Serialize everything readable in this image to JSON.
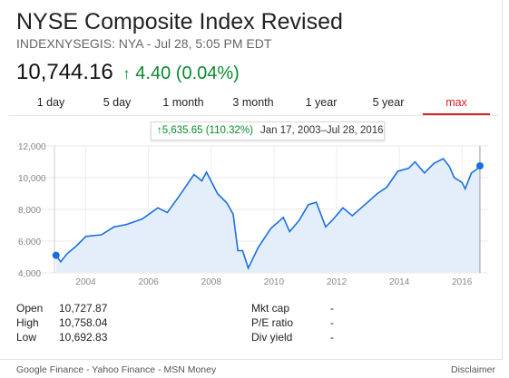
{
  "header": {
    "title": "NYSE Composite Index Revised",
    "subtitle": "INDEXNYSEGIS: NYA - Jul 28, 5:05 PM EDT",
    "price": "10,744.16",
    "change_arrow": "↑",
    "change": "4.40 (0.04%)"
  },
  "ranges": [
    "1 day",
    "5 day",
    "1 month",
    "3 month",
    "1 year",
    "5 year",
    "max"
  ],
  "active_range": "max",
  "tooltip": {
    "delta": "↑5,635.65 (110.32%)",
    "range": "Jan 17, 2003–Jul 28, 2016"
  },
  "colors": {
    "line": "#1a6fe0",
    "fill": "#e4eefb",
    "up": "#0a8a2e",
    "active": "#dd2222"
  },
  "chart_data": {
    "type": "area",
    "y_ticks": [
      "12,000",
      "10,000",
      "8,000",
      "6,000",
      "4,000"
    ],
    "x_ticks": [
      "2004",
      "2006",
      "2008",
      "2010",
      "2012",
      "2014",
      "2016"
    ],
    "ylim": [
      4000,
      12000
    ],
    "xlim": [
      2003.0,
      2016.6
    ],
    "grid": true,
    "points": [
      [
        2003.05,
        5108
      ],
      [
        2003.2,
        4700
      ],
      [
        2003.4,
        5200
      ],
      [
        2003.7,
        5700
      ],
      [
        2004.0,
        6300
      ],
      [
        2004.5,
        6400
      ],
      [
        2004.9,
        6900
      ],
      [
        2005.3,
        7050
      ],
      [
        2005.8,
        7400
      ],
      [
        2006.3,
        8100
      ],
      [
        2006.6,
        7800
      ],
      [
        2007.0,
        8900
      ],
      [
        2007.45,
        10200
      ],
      [
        2007.7,
        9800
      ],
      [
        2007.85,
        10350
      ],
      [
        2008.2,
        9000
      ],
      [
        2008.5,
        8400
      ],
      [
        2008.7,
        7700
      ],
      [
        2008.85,
        5400
      ],
      [
        2009.0,
        5400
      ],
      [
        2009.18,
        4300
      ],
      [
        2009.5,
        5600
      ],
      [
        2009.9,
        6800
      ],
      [
        2010.3,
        7500
      ],
      [
        2010.5,
        6600
      ],
      [
        2010.8,
        7300
      ],
      [
        2011.1,
        8300
      ],
      [
        2011.35,
        8450
      ],
      [
        2011.65,
        6900
      ],
      [
        2011.9,
        7400
      ],
      [
        2012.2,
        8100
      ],
      [
        2012.5,
        7600
      ],
      [
        2012.9,
        8300
      ],
      [
        2013.3,
        9000
      ],
      [
        2013.6,
        9400
      ],
      [
        2013.95,
        10400
      ],
      [
        2014.3,
        10600
      ],
      [
        2014.5,
        11000
      ],
      [
        2014.8,
        10300
      ],
      [
        2015.1,
        10900
      ],
      [
        2015.4,
        11200
      ],
      [
        2015.6,
        10700
      ],
      [
        2015.75,
        10000
      ],
      [
        2016.0,
        9700
      ],
      [
        2016.1,
        9300
      ],
      [
        2016.3,
        10300
      ],
      [
        2016.45,
        10500
      ],
      [
        2016.57,
        10744
      ]
    ]
  },
  "stats": {
    "left": [
      {
        "label": "Open",
        "value": "10,727.87"
      },
      {
        "label": "High",
        "value": "10,758.04"
      },
      {
        "label": "Low",
        "value": "10,692.83"
      }
    ],
    "right": [
      {
        "label": "Mkt cap",
        "value": "-"
      },
      {
        "label": "P/E ratio",
        "value": "-"
      },
      {
        "label": "Div yield",
        "value": "-"
      }
    ]
  },
  "footer": {
    "sources": "Google Finance - Yahoo Finance - MSN Money",
    "disclaimer": "Disclaimer"
  }
}
